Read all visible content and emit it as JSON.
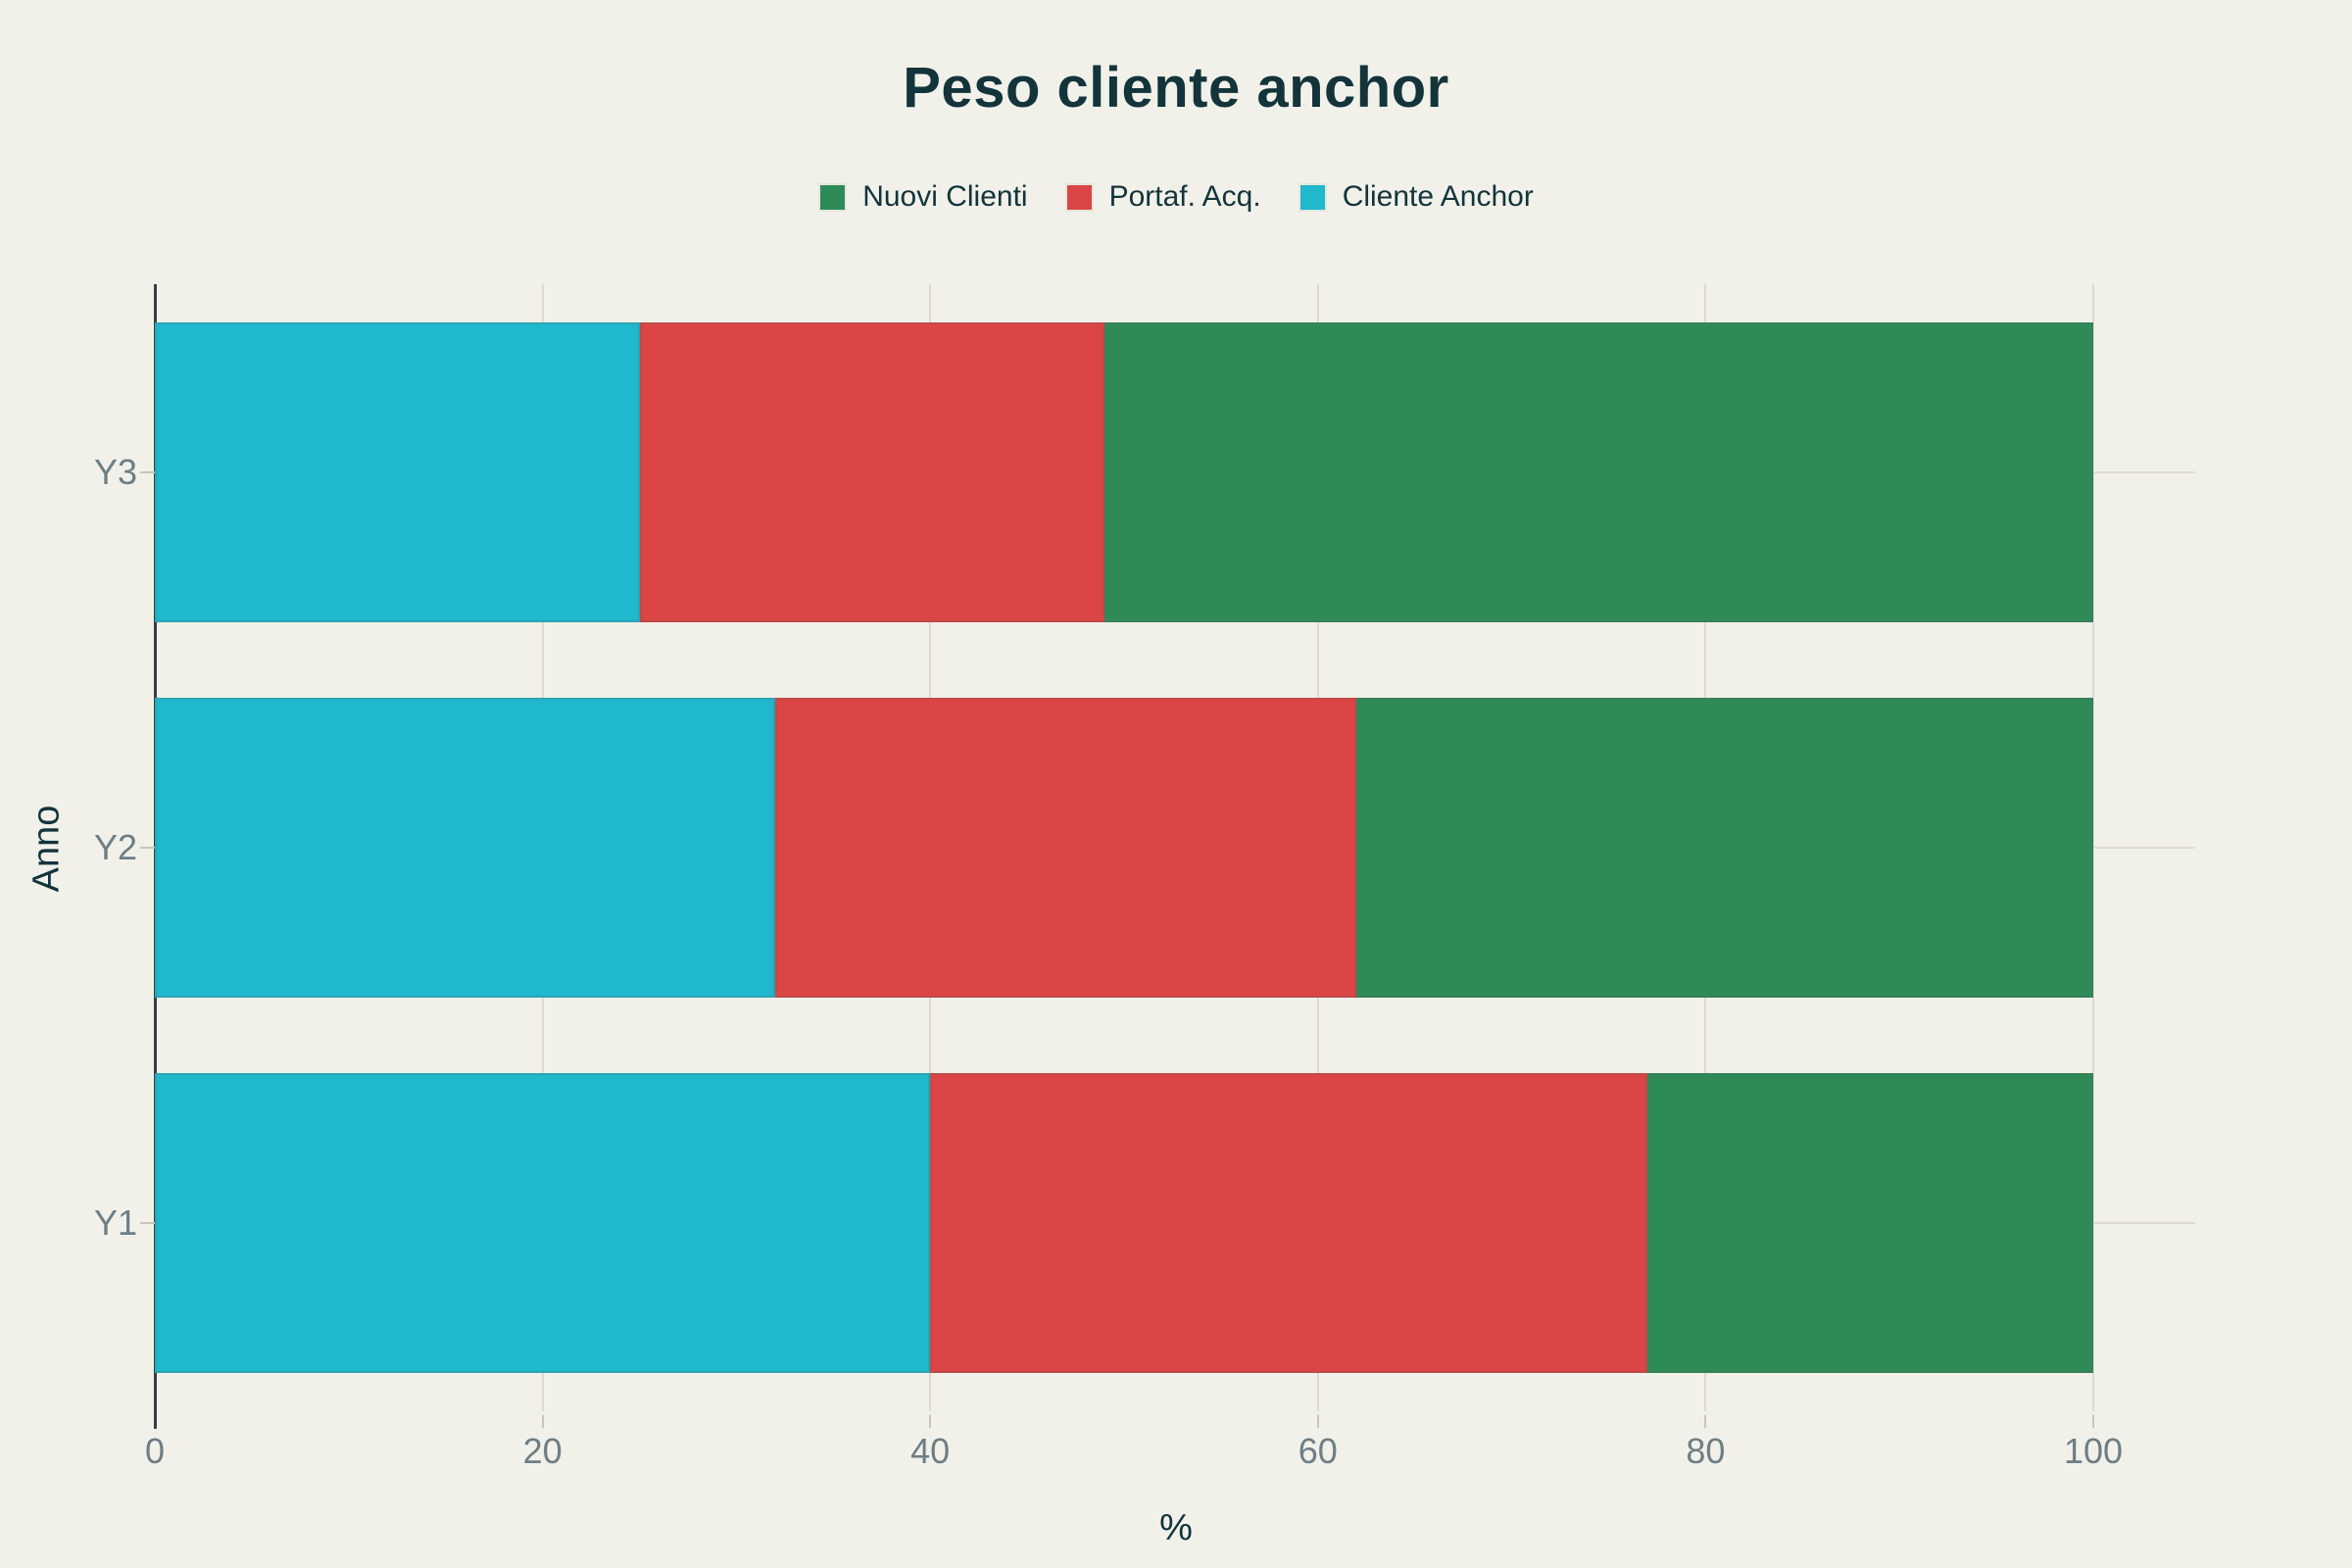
{
  "chart_data": {
    "type": "bar",
    "orientation": "horizontal",
    "barmode": "stack",
    "title": "Peso cliente anchor",
    "xlabel": "%",
    "ylabel": "Anno",
    "categories_top_to_bottom": [
      "Y3",
      "Y2",
      "Y1"
    ],
    "series": [
      {
        "name": "Cliente Anchor",
        "color": "#1FB8CD",
        "values": [
          25,
          32,
          40
        ]
      },
      {
        "name": "Portaf. Acq.",
        "color": "#DB4545",
        "values": [
          24,
          30,
          37
        ]
      },
      {
        "name": "Nuovi Clienti",
        "color": "#2E8B57",
        "values": [
          51,
          38,
          23
        ]
      }
    ],
    "x_ticks": [
      "0",
      "20",
      "40",
      "60",
      "80",
      "100"
    ],
    "x_tick_values": [
      0,
      20,
      40,
      60,
      80,
      100
    ],
    "xlim": [
      0,
      105
    ],
    "grid": true,
    "legend_position": "top-center"
  },
  "legend": {
    "items": [
      {
        "label": "Nuovi Clienti",
        "color": "#2E8B57"
      },
      {
        "label": "Portaf. Acq.",
        "color": "#DB4545"
      },
      {
        "label": "Cliente Anchor",
        "color": "#1FB8CD"
      }
    ]
  },
  "colors": {
    "background": "#F1F1EA",
    "text_dark": "#13343B",
    "tick_text": "#6E7E85",
    "gridline": "#DCDAD3",
    "tick_mark": "#C6C4BD",
    "axis_line": "#353F44"
  }
}
